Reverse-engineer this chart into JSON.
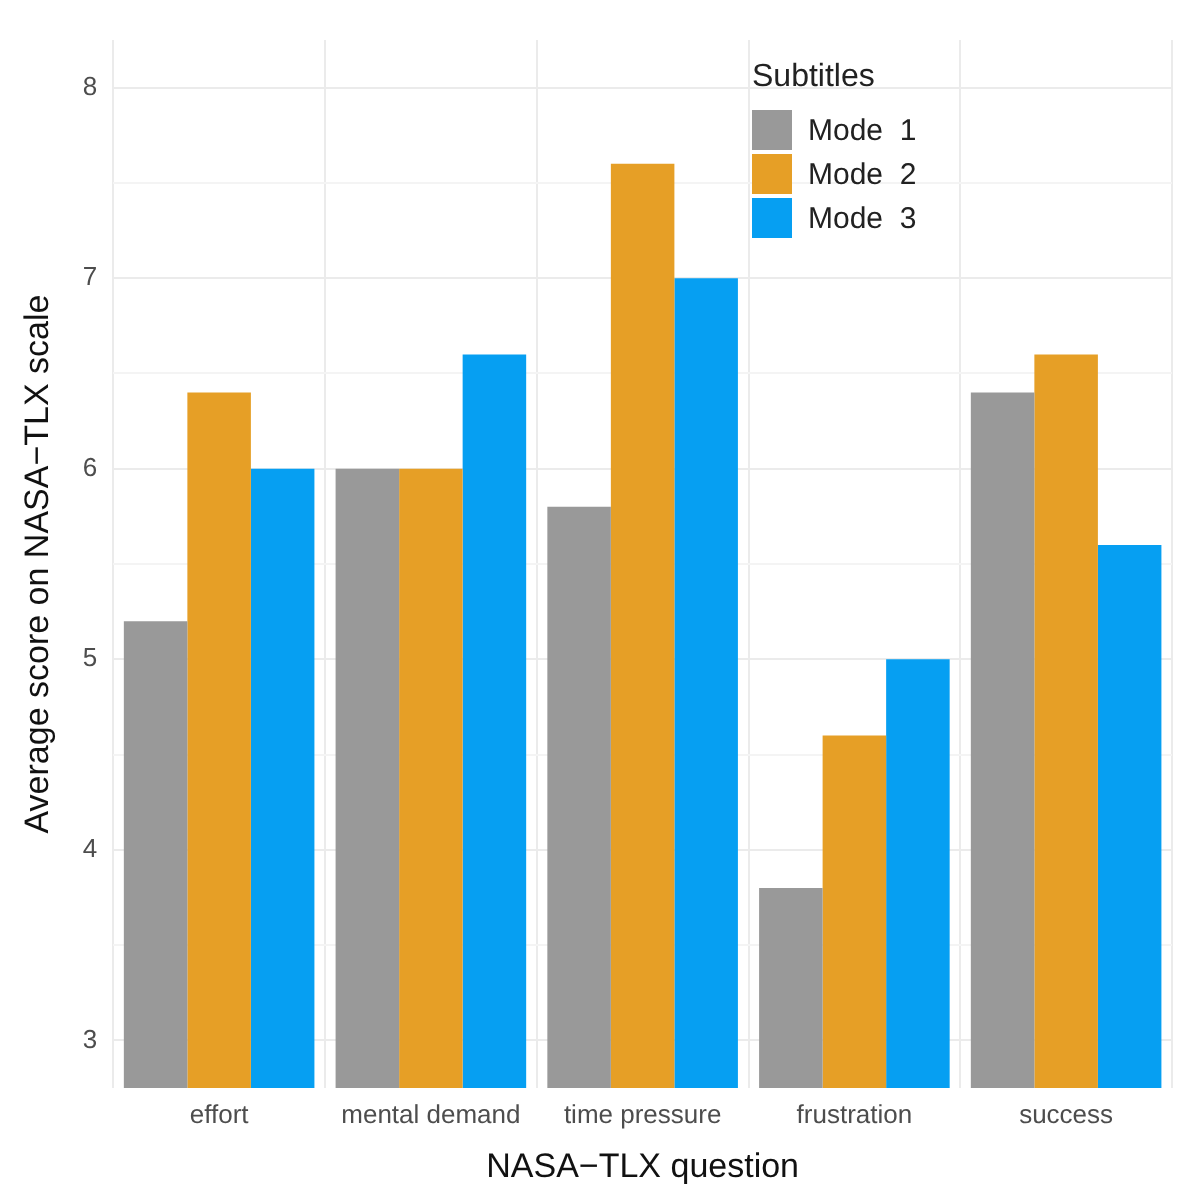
{
  "chart_data": {
    "type": "bar",
    "xlabel": "NASA−TLX question",
    "ylabel": "Average score on NASA−TLX scale",
    "legend_title": "Subtitles",
    "categories": [
      "effort",
      "mental demand",
      "time pressure",
      "frustration",
      "success"
    ],
    "series": [
      {
        "name": "Mode  1",
        "color": "#999999",
        "values": [
          5.2,
          6.0,
          5.8,
          3.8,
          6.4
        ]
      },
      {
        "name": "Mode  2",
        "color": "#e69f26",
        "values": [
          6.4,
          6.0,
          7.6,
          4.6,
          6.6
        ]
      },
      {
        "name": "Mode  3",
        "color": "#069ff2",
        "values": [
          6.0,
          6.6,
          7.0,
          5.0,
          5.6
        ]
      }
    ],
    "ylim": [
      2.75,
      8.25
    ],
    "yticks": [
      3,
      {
        "value": 3.5,
        "label": null
      },
      4,
      {
        "value": 4.5,
        "label": null
      },
      5,
      {
        "value": 5.5,
        "label": null
      },
      6,
      {
        "value": 6.5,
        "label": null
      },
      7,
      {
        "value": 7.5,
        "label": null
      },
      8
    ],
    "grid": true,
    "legend": "top right"
  }
}
